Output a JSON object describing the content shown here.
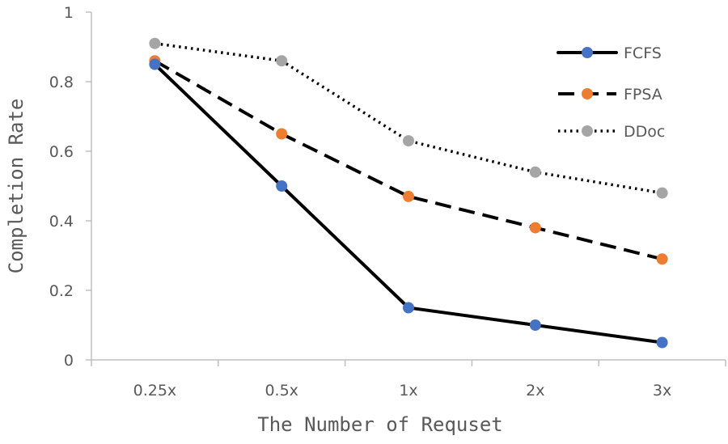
{
  "chart_data": {
    "type": "line",
    "title": "",
    "xlabel": "The Number of Requset",
    "ylabel": "Completion Rate",
    "categories": [
      "0.25x",
      "0.5x",
      "1x",
      "2x",
      "3x"
    ],
    "ylim": [
      0,
      1
    ],
    "yticks": [
      0,
      0.2,
      0.4,
      0.6,
      0.8,
      1
    ],
    "ytick_labels": [
      "0",
      "0.2",
      "0.4",
      "0.6",
      "0.8",
      "1"
    ],
    "grid": false,
    "legend_position": "top-right",
    "series": [
      {
        "name": "FCFS",
        "values": [
          0.85,
          0.5,
          0.15,
          0.1,
          0.05
        ],
        "line_color": "#000000",
        "marker_color": "#4472C4",
        "line_style": "solid"
      },
      {
        "name": "FPSA",
        "values": [
          0.86,
          0.65,
          0.47,
          0.38,
          0.29
        ],
        "line_color": "#000000",
        "marker_color": "#ED7D31",
        "line_style": "dashed"
      },
      {
        "name": "DDoc",
        "values": [
          0.91,
          0.86,
          0.63,
          0.54,
          0.48
        ],
        "line_color": "#000000",
        "marker_color": "#A5A5A5",
        "line_style": "dotted"
      }
    ]
  }
}
